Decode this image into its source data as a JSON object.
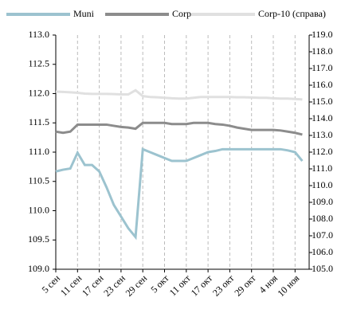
{
  "chart_data": {
    "type": "line",
    "x": [
      "5 сен",
      null,
      null,
      "11 сен",
      null,
      null,
      "17 сен",
      null,
      null,
      "23 сен",
      null,
      null,
      "29 сен",
      null,
      null,
      "5 окт",
      null,
      null,
      "11 окт",
      null,
      null,
      "17 окт",
      null,
      null,
      "23 окт",
      null,
      null,
      "29 окт",
      null,
      null,
      "4 ноя",
      null,
      null,
      "10 ноя",
      null
    ],
    "series": [
      {
        "name": "Muni",
        "color": "#9cc3cf",
        "axis": "y",
        "values": [
          110.67,
          110.7,
          110.72,
          110.99,
          110.78,
          110.78,
          110.67,
          110.4,
          110.1,
          109.9,
          109.7,
          109.55,
          111.05,
          111.0,
          110.95,
          110.9,
          110.85,
          110.85,
          110.85,
          110.9,
          110.95,
          111.0,
          111.02,
          111.05,
          111.05,
          111.05,
          111.05,
          111.05,
          111.05,
          111.05,
          111.05,
          111.05,
          111.03,
          111.0,
          110.85
        ]
      },
      {
        "name": "Corp",
        "color": "#8c8c8c",
        "axis": "y",
        "values": [
          111.35,
          111.33,
          111.35,
          111.47,
          111.47,
          111.47,
          111.47,
          111.47,
          111.45,
          111.43,
          111.42,
          111.4,
          111.5,
          111.5,
          111.5,
          111.5,
          111.48,
          111.48,
          111.48,
          111.5,
          111.5,
          111.5,
          111.48,
          111.47,
          111.45,
          111.42,
          111.4,
          111.38,
          111.38,
          111.38,
          111.38,
          111.37,
          111.35,
          111.33,
          111.3
        ]
      },
      {
        "name": "Corp-10 (справа)",
        "color": "#e0e0e0",
        "axis": "y2",
        "values": [
          115.62,
          115.6,
          115.58,
          115.55,
          115.5,
          115.48,
          115.48,
          115.48,
          115.47,
          115.45,
          115.45,
          115.7,
          115.35,
          115.3,
          115.28,
          115.25,
          115.22,
          115.2,
          115.2,
          115.25,
          115.3,
          115.3,
          115.3,
          115.3,
          115.3,
          115.28,
          115.28,
          115.27,
          115.25,
          115.25,
          115.22,
          115.2,
          115.2,
          115.18,
          115.15
        ]
      }
    ],
    "ylim": [
      109.0,
      113.0
    ],
    "yticks": [
      {
        "value": 109,
        "label": "109.0"
      },
      {
        "value": 109.5,
        "label": "109.5"
      },
      {
        "value": 110,
        "label": "110.0"
      },
      {
        "value": 110.5,
        "label": "110.5"
      },
      {
        "value": 111,
        "label": "111.0"
      },
      {
        "value": 111.5,
        "label": "111.5"
      },
      {
        "value": 112,
        "label": "112.0"
      },
      {
        "value": 112.5,
        "label": "112.5"
      },
      {
        "value": 113,
        "label": "113.0"
      }
    ],
    "y2lim": [
      105.0,
      119.0
    ],
    "y2ticks": [
      {
        "value": 105,
        "label": "105.0"
      },
      {
        "value": 106,
        "label": "106.0"
      },
      {
        "value": 107,
        "label": "107.0"
      },
      {
        "value": 108,
        "label": "108.0"
      },
      {
        "value": 109,
        "label": "109.0"
      },
      {
        "value": 110,
        "label": "110.0"
      },
      {
        "value": 111,
        "label": "111.0"
      },
      {
        "value": 112,
        "label": "112.0"
      },
      {
        "value": 113,
        "label": "113.0"
      },
      {
        "value": 114,
        "label": "114.0"
      },
      {
        "value": 115,
        "label": "115.0"
      },
      {
        "value": 116,
        "label": "116.0"
      },
      {
        "value": 117,
        "label": "117.0"
      },
      {
        "value": 118,
        "label": "118.0"
      },
      {
        "value": 119,
        "label": "119.0"
      }
    ],
    "grid": true
  }
}
